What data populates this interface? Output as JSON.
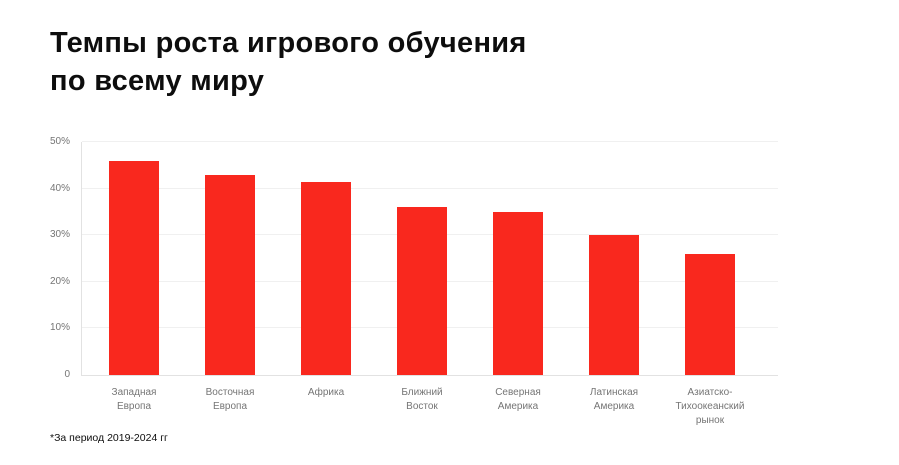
{
  "header": {
    "title_line1": "Темпы роста игрового обучения",
    "title_line2": "по всему миру"
  },
  "footnote": "*За период 2019-2024 гг",
  "colors": {
    "bar": "#F9281E",
    "grid": "#F0F0F0",
    "axis": "#E2E2E2",
    "muted": "#757575",
    "ink": "#0D0D0D",
    "background": "#FFFFFF"
  },
  "chart_data": {
    "type": "bar",
    "title": "Темпы роста игрового обучения по всему миру",
    "footnote": "*За период 2019-2024 гг",
    "categories": [
      "Западная Европа",
      "Восточная Европа",
      "Африка",
      "Ближний Восток",
      "Северная Америка",
      "Латинская Америка",
      "Азиатско-Тихоокеанский рынок"
    ],
    "category_lines": [
      [
        "Западная",
        "Европа"
      ],
      [
        "Восточная",
        "Европа"
      ],
      [
        "Африка"
      ],
      [
        "Ближний",
        "Восток"
      ],
      [
        "Северная",
        "Америка"
      ],
      [
        "Латинская",
        "Америка"
      ],
      [
        "Азиатско-",
        "Тихоокеанский",
        "рынок"
      ]
    ],
    "values": [
      46,
      43,
      41.5,
      36,
      35,
      30,
      26
    ],
    "unit": "%",
    "xlabel": "",
    "ylabel": "",
    "ylim": [
      0,
      50
    ],
    "yticks": [
      {
        "value": 0,
        "label": "0"
      },
      {
        "value": 10,
        "label": "10%"
      },
      {
        "value": 20,
        "label": "20%"
      },
      {
        "value": 30,
        "label": "30%"
      },
      {
        "value": 40,
        "label": "40%"
      },
      {
        "value": 50,
        "label": "50%"
      }
    ],
    "grid": true,
    "legend": false,
    "bar_color": "#F9281E"
  }
}
